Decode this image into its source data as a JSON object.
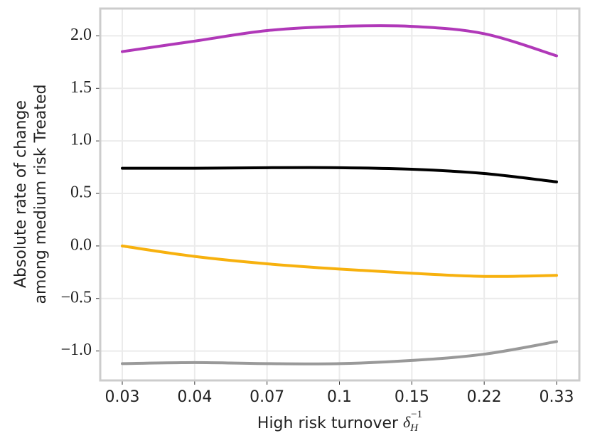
{
  "chart_data": {
    "type": "line",
    "ylabel": [
      "Absolute rate of change",
      "among medium risk Treated"
    ],
    "xlabel": {
      "text": "High risk turnover ",
      "symbol": "δ",
      "subscript": "H",
      "superscript": "−1"
    },
    "categories": [
      "0.03",
      "0.04",
      "0.07",
      "0.1",
      "0.15",
      "0.22",
      "0.33"
    ],
    "series": [
      {
        "color": "#b038b8",
        "values": [
          1.85,
          1.95,
          2.05,
          2.09,
          2.09,
          2.02,
          1.81
        ]
      },
      {
        "color": "#000000",
        "values": [
          0.74,
          0.74,
          0.745,
          0.745,
          0.73,
          0.69,
          0.61
        ]
      },
      {
        "color": "#f7b10e",
        "values": [
          0.0,
          -0.1,
          -0.17,
          -0.22,
          -0.26,
          -0.29,
          -0.28
        ]
      },
      {
        "color": "#999999",
        "values": [
          -1.12,
          -1.11,
          -1.12,
          -1.12,
          -1.09,
          -1.03,
          -0.91
        ]
      }
    ],
    "ylim": [
      -1.28,
      2.26
    ],
    "yticks": [
      {
        "value": 2,
        "label": "2.0"
      },
      {
        "value": 1.5,
        "label": "1.5"
      },
      {
        "value": 1,
        "label": "1.0"
      },
      {
        "value": 0.5,
        "label": "0.5"
      },
      {
        "value": 0,
        "label": "0.0"
      },
      {
        "value": -0.5,
        "label": "−0.5"
      },
      {
        "value": -1,
        "label": "−1.0"
      }
    ],
    "grid": true
  }
}
